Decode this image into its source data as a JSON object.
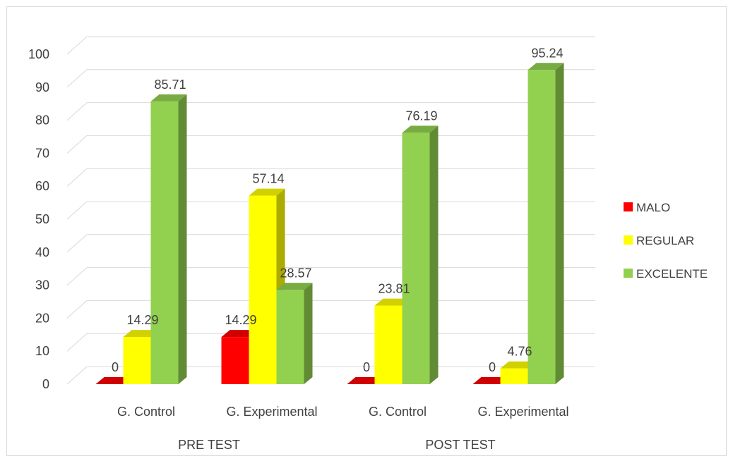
{
  "chart_data": {
    "type": "bar",
    "title": "",
    "xlabel": "",
    "ylabel": "",
    "ylim": [
      0,
      100
    ],
    "yticks": [
      0,
      10,
      20,
      30,
      40,
      50,
      60,
      70,
      80,
      90,
      100
    ],
    "grid": true,
    "legend_position": "right",
    "categories": [
      "G. Control",
      "G. Experimental",
      "G. Control",
      "G. Experimental"
    ],
    "groups": [
      {
        "label": "PRE TEST",
        "categories": [
          "G. Control",
          "G. Experimental"
        ]
      },
      {
        "label": "POST TEST",
        "categories": [
          "G. Control",
          "G. Experimental"
        ]
      }
    ],
    "series": [
      {
        "name": "MALO",
        "values": [
          0,
          14.29,
          0,
          0
        ],
        "labels": [
          "0",
          "14.29",
          "0",
          "0"
        ],
        "color": "#ff0000"
      },
      {
        "name": "REGULAR",
        "values": [
          14.29,
          57.14,
          23.81,
          4.76
        ],
        "labels": [
          "14.29",
          "57.14",
          "23.81",
          "4.76"
        ],
        "color": "#ffff00"
      },
      {
        "name": "EXCELENTE",
        "values": [
          85.71,
          28.57,
          76.19,
          95.24
        ],
        "labels": [
          "85.71",
          "28.57",
          "76.19",
          "95.24"
        ],
        "color": "#92d050"
      }
    ]
  }
}
